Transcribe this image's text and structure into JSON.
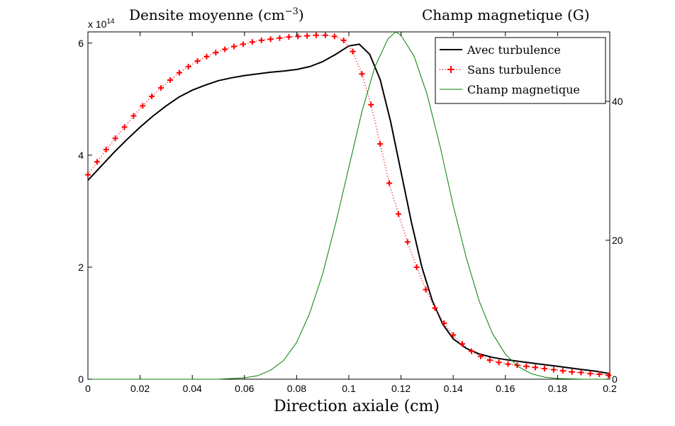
{
  "chart_data": {
    "type": "line",
    "title_left": "Densite moyenne (cm",
    "title_left_exponent": "−3",
    "title_left_close": ")",
    "title_right": "Champ magnetique (G)",
    "xlabel": "Direction axiale (cm)",
    "left_axis_multiplier": "x 10",
    "left_axis_multiplier_exp": "14",
    "xlim": [
      0,
      0.2
    ],
    "ylim_left": [
      0,
      6.2
    ],
    "ylim_right": [
      0,
      50
    ],
    "x_ticks": [
      "0",
      "0.02",
      "0.04",
      "0.06",
      "0.08",
      "0.1",
      "0.12",
      "0.14",
      "0.16",
      "0.18",
      "0.2"
    ],
    "x_tick_values": [
      0,
      0.02,
      0.04,
      0.06,
      0.08,
      0.1,
      0.12,
      0.14,
      0.16,
      0.18,
      0.2
    ],
    "y_left_ticks": [
      "0",
      "2",
      "4",
      "6"
    ],
    "y_left_tick_values": [
      0,
      2,
      4,
      6
    ],
    "y_right_ticks": [
      "0",
      "20",
      "40"
    ],
    "y_right_tick_values": [
      0,
      20,
      40
    ],
    "legend_placement": "top-right",
    "series": [
      {
        "name": "Avec turbulence",
        "axis": "left",
        "color": "#000000",
        "style": "solid",
        "x": [
          0,
          0.005,
          0.01,
          0.015,
          0.02,
          0.025,
          0.03,
          0.035,
          0.04,
          0.045,
          0.05,
          0.055,
          0.06,
          0.065,
          0.07,
          0.075,
          0.08,
          0.085,
          0.09,
          0.095,
          0.1,
          0.104,
          0.108,
          0.112,
          0.116,
          0.12,
          0.124,
          0.128,
          0.132,
          0.136,
          0.14,
          0.145,
          0.15,
          0.155,
          0.16,
          0.165,
          0.17,
          0.175,
          0.18,
          0.185,
          0.19,
          0.195,
          0.2
        ],
        "y": [
          3.55,
          3.8,
          4.05,
          4.28,
          4.5,
          4.7,
          4.88,
          5.04,
          5.16,
          5.25,
          5.33,
          5.38,
          5.42,
          5.45,
          5.48,
          5.5,
          5.53,
          5.58,
          5.67,
          5.8,
          5.95,
          5.98,
          5.8,
          5.35,
          4.6,
          3.7,
          2.8,
          2.0,
          1.4,
          0.98,
          0.72,
          0.55,
          0.45,
          0.39,
          0.35,
          0.32,
          0.29,
          0.26,
          0.23,
          0.2,
          0.17,
          0.14,
          0.1
        ]
      },
      {
        "name": "Sans turbulence",
        "axis": "left",
        "color": "#ff0000",
        "style": "dotted-plus",
        "x": [
          0,
          0.0035,
          0.007,
          0.0105,
          0.014,
          0.0175,
          0.021,
          0.0245,
          0.028,
          0.0315,
          0.035,
          0.0385,
          0.042,
          0.0455,
          0.049,
          0.0525,
          0.056,
          0.0595,
          0.063,
          0.0665,
          0.07,
          0.0735,
          0.077,
          0.0805,
          0.084,
          0.0875,
          0.091,
          0.0945,
          0.098,
          0.1015,
          0.105,
          0.1085,
          0.112,
          0.1155,
          0.119,
          0.1225,
          0.126,
          0.1295,
          0.133,
          0.1365,
          0.14,
          0.1435,
          0.147,
          0.1505,
          0.154,
          0.1575,
          0.161,
          0.1645,
          0.168,
          0.1715,
          0.175,
          0.1785,
          0.182,
          0.1855,
          0.189,
          0.1925,
          0.196,
          0.1995
        ],
        "y": [
          3.65,
          3.88,
          4.1,
          4.3,
          4.5,
          4.7,
          4.88,
          5.05,
          5.2,
          5.34,
          5.47,
          5.58,
          5.68,
          5.76,
          5.83,
          5.89,
          5.94,
          5.98,
          6.02,
          6.05,
          6.07,
          6.09,
          6.11,
          6.12,
          6.13,
          6.14,
          6.14,
          6.12,
          6.05,
          5.85,
          5.45,
          4.9,
          4.2,
          3.5,
          2.95,
          2.45,
          2.0,
          1.6,
          1.27,
          1.0,
          0.79,
          0.63,
          0.5,
          0.41,
          0.34,
          0.3,
          0.27,
          0.25,
          0.23,
          0.21,
          0.19,
          0.17,
          0.15,
          0.13,
          0.12,
          0.1,
          0.09,
          0.07
        ]
      },
      {
        "name": "Champ magnetique",
        "axis": "right",
        "color": "#007f00",
        "style": "solid",
        "x": [
          0,
          0.05,
          0.06,
          0.065,
          0.07,
          0.075,
          0.08,
          0.085,
          0.09,
          0.095,
          0.1,
          0.105,
          0.11,
          0.115,
          0.118,
          0.12,
          0.125,
          0.13,
          0.135,
          0.14,
          0.145,
          0.15,
          0.155,
          0.16,
          0.165,
          0.17,
          0.175,
          0.18,
          0.185,
          0.19,
          0.2
        ],
        "y": [
          0,
          0,
          0.2,
          0.5,
          1.3,
          2.7,
          5.3,
          9.5,
          15.2,
          22.5,
          30.5,
          38.5,
          45.0,
          49.0,
          50.0,
          49.5,
          46.5,
          41.0,
          33.5,
          25.0,
          17.5,
          11.2,
          6.6,
          3.6,
          1.8,
          0.8,
          0.3,
          0.1,
          0.05,
          0,
          0
        ]
      }
    ]
  }
}
